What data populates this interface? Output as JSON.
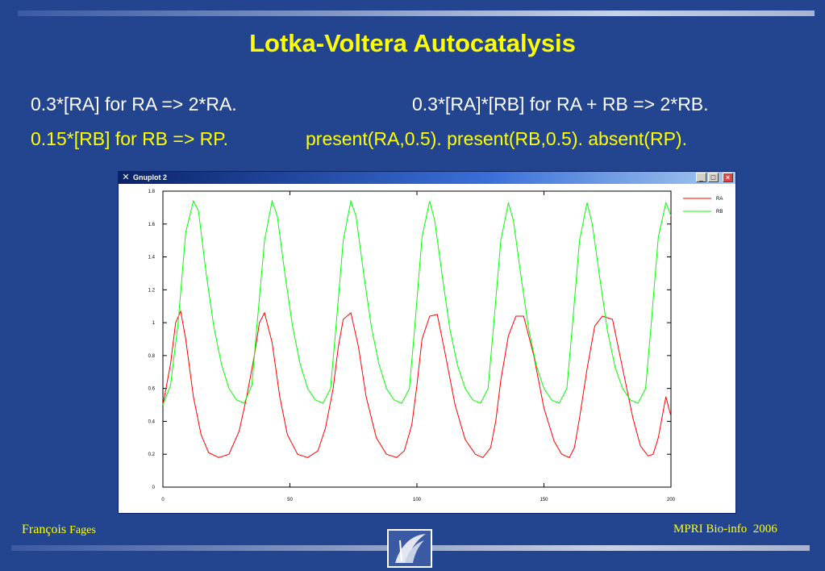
{
  "slide": {
    "title": "Lotka-Voltera Autocatalysis",
    "rule1_left": "0.3*[RA] for RA => 2*RA.",
    "rule1_right": "0.3*[RA]*[RB] for RA + RB => 2*RB.",
    "rule2_left": "0.15*[RB] for RB => RP.",
    "rule2_right": "present(RA,0.5). present(RB,0.5). absent(RP).",
    "footer_author_first": "François",
    "footer_author_last": "Fages",
    "footer_course": "MPRI Bio-info  2006",
    "text_color": "#ffffff",
    "highlight_color": "#ffff00",
    "background_color": "#23458f"
  },
  "window": {
    "title": "Gnuplot 2",
    "minimize_label": "_",
    "maximize_label": "□",
    "close_label": "×"
  },
  "chart_data": {
    "type": "line",
    "xlim": [
      0,
      200
    ],
    "ylim": [
      0,
      1.8
    ],
    "xticks": [
      0,
      50,
      100,
      150,
      200
    ],
    "yticks": [
      0,
      0.2,
      0.4,
      0.6,
      0.8,
      1,
      1.2,
      1.4,
      1.6,
      1.8
    ],
    "xtick_labels": [
      "0",
      "50",
      "100",
      "150",
      "200"
    ],
    "ytick_labels": [
      "0",
      "0.2",
      "0.4",
      "0.6",
      "0.8",
      "1",
      "1.2",
      "1.4",
      "1.6",
      "1.8"
    ],
    "legend_position": "top-right, outside plot",
    "grid": false,
    "series": [
      {
        "name": "RA",
        "color": "#ff0000",
        "x": [
          0,
          3,
          5,
          7,
          9,
          12,
          15,
          18,
          22,
          26,
          30,
          33,
          36,
          38,
          40,
          43,
          46,
          49,
          53,
          57,
          61,
          64,
          67,
          69,
          71,
          74,
          77,
          80,
          84,
          88,
          92,
          95,
          98,
          100,
          102,
          105,
          108,
          111,
          115,
          119,
          123,
          126,
          129,
          131,
          133,
          136,
          139,
          142,
          146,
          150,
          154,
          157,
          160,
          162,
          164,
          167,
          170,
          173,
          177,
          181,
          185,
          188,
          191,
          193,
          195,
          198,
          200
        ],
        "y": [
          0.5,
          0.75,
          1.0,
          1.07,
          0.9,
          0.55,
          0.32,
          0.21,
          0.18,
          0.2,
          0.34,
          0.55,
          0.8,
          1.0,
          1.06,
          0.88,
          0.55,
          0.32,
          0.2,
          0.18,
          0.22,
          0.36,
          0.6,
          0.85,
          1.02,
          1.06,
          0.85,
          0.55,
          0.3,
          0.2,
          0.18,
          0.22,
          0.38,
          0.62,
          0.9,
          1.04,
          1.05,
          0.82,
          0.5,
          0.29,
          0.2,
          0.18,
          0.24,
          0.4,
          0.65,
          0.92,
          1.04,
          1.04,
          0.8,
          0.48,
          0.28,
          0.2,
          0.18,
          0.24,
          0.42,
          0.72,
          0.98,
          1.04,
          1.02,
          0.72,
          0.42,
          0.25,
          0.19,
          0.2,
          0.3,
          0.55,
          0.43
        ]
      },
      {
        "name": "RB",
        "color": "#00ff00",
        "x": [
          0,
          3,
          6,
          9,
          12,
          14,
          17,
          20,
          23,
          26,
          29,
          32,
          35,
          37,
          40,
          43,
          45,
          48,
          51,
          54,
          57,
          60,
          63,
          66,
          68,
          71,
          74,
          76,
          79,
          82,
          85,
          88,
          91,
          94,
          97,
          99,
          102,
          105,
          107,
          110,
          113,
          116,
          119,
          122,
          125,
          128,
          130,
          133,
          136,
          138,
          141,
          144,
          147,
          150,
          153,
          156,
          159,
          161,
          164,
          167,
          169,
          172,
          175,
          178,
          181,
          184,
          187,
          190,
          192,
          195,
          198,
          200
        ],
        "y": [
          0.5,
          0.62,
          1.0,
          1.55,
          1.74,
          1.68,
          1.3,
          0.98,
          0.75,
          0.6,
          0.53,
          0.51,
          0.62,
          0.98,
          1.5,
          1.74,
          1.65,
          1.3,
          0.98,
          0.75,
          0.6,
          0.53,
          0.51,
          0.6,
          0.95,
          1.5,
          1.74,
          1.65,
          1.3,
          0.98,
          0.75,
          0.6,
          0.53,
          0.51,
          0.6,
          0.95,
          1.52,
          1.74,
          1.62,
          1.28,
          0.96,
          0.74,
          0.6,
          0.53,
          0.51,
          0.6,
          0.95,
          1.5,
          1.73,
          1.62,
          1.28,
          0.96,
          0.74,
          0.6,
          0.53,
          0.51,
          0.6,
          0.95,
          1.5,
          1.73,
          1.6,
          1.27,
          0.95,
          0.73,
          0.6,
          0.53,
          0.51,
          0.6,
          0.95,
          1.52,
          1.73,
          1.65
        ]
      }
    ]
  }
}
